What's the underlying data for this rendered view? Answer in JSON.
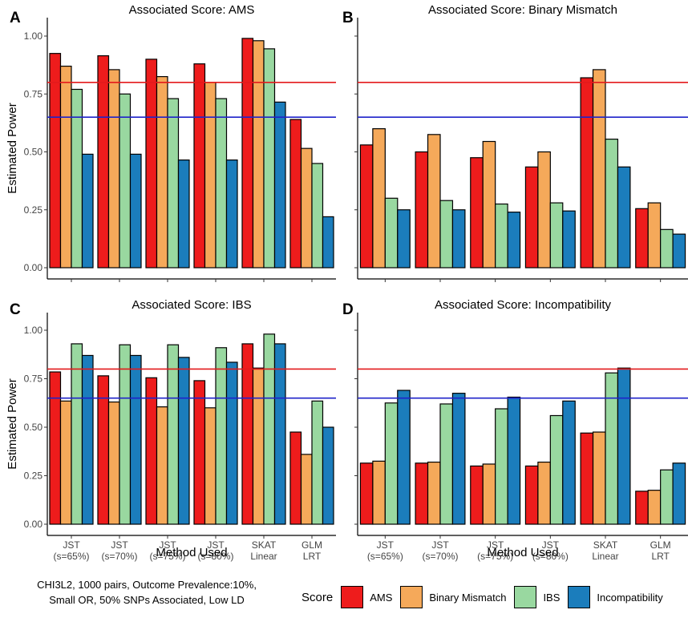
{
  "figure": {
    "caption_line1": "CHI3L2, 1000 pairs, Outcome Prevalence:10%,",
    "caption_line2": "Small OR, 50% SNPs Associated, Low LD",
    "legend_title": "Score",
    "ylabel": "Estimated Power",
    "xlabel": "Method Used"
  },
  "series_names": [
    "AMS",
    "Binary Mismatch",
    "IBS",
    "Incompatibility"
  ],
  "colors": {
    "AMS": "#ee1c1c",
    "Binary Mismatch": "#f5a95a",
    "IBS": "#99d8a0",
    "Incompatibility": "#1b7dbc",
    "line_red": "#e31a1c",
    "line_blue": "#1f23c9"
  },
  "chart_data": [
    {
      "panel": "A",
      "type": "bar",
      "title": "Associated Score: AMS",
      "categories": [
        [
          "JST",
          "(s=65%)"
        ],
        [
          "JST",
          "(s=70%)"
        ],
        [
          "JST",
          "(s=75%)"
        ],
        [
          "JST",
          "(s=80%)"
        ],
        [
          "SKAT",
          "Linear"
        ],
        [
          "GLM",
          "LRT"
        ]
      ],
      "series": [
        {
          "name": "AMS",
          "values": [
            0.925,
            0.915,
            0.9,
            0.88,
            0.99,
            0.64
          ]
        },
        {
          "name": "Binary Mismatch",
          "values": [
            0.87,
            0.855,
            0.825,
            0.8,
            0.98,
            0.515
          ]
        },
        {
          "name": "IBS",
          "values": [
            0.77,
            0.75,
            0.73,
            0.73,
            0.945,
            0.45
          ]
        },
        {
          "name": "Incompatibility",
          "values": [
            0.49,
            0.49,
            0.465,
            0.465,
            0.715,
            0.22
          ]
        }
      ],
      "hlines": [
        {
          "value": 0.8,
          "color": "red"
        },
        {
          "value": 0.65,
          "color": "blue"
        }
      ],
      "ylim": [
        0,
        1.0
      ],
      "yticks": [
        "0.00",
        "0.25",
        "0.50",
        "0.75",
        "1.00"
      ],
      "show_yaxis_labels": true,
      "show_xaxis_labels": false
    },
    {
      "panel": "B",
      "type": "bar",
      "title": "Associated Score: Binary Mismatch",
      "categories": [
        [
          "JST",
          "(s=65%)"
        ],
        [
          "JST",
          "(s=70%)"
        ],
        [
          "JST",
          "(s=75%)"
        ],
        [
          "JST",
          "(s=80%)"
        ],
        [
          "SKAT",
          "Linear"
        ],
        [
          "GLM",
          "LRT"
        ]
      ],
      "series": [
        {
          "name": "AMS",
          "values": [
            0.53,
            0.5,
            0.475,
            0.435,
            0.82,
            0.255
          ]
        },
        {
          "name": "Binary Mismatch",
          "values": [
            0.6,
            0.575,
            0.545,
            0.5,
            0.855,
            0.28
          ]
        },
        {
          "name": "IBS",
          "values": [
            0.3,
            0.29,
            0.275,
            0.28,
            0.555,
            0.165
          ]
        },
        {
          "name": "Incompatibility",
          "values": [
            0.25,
            0.25,
            0.24,
            0.245,
            0.435,
            0.145
          ]
        }
      ],
      "hlines": [
        {
          "value": 0.8,
          "color": "red"
        },
        {
          "value": 0.65,
          "color": "blue"
        }
      ],
      "ylim": [
        0,
        1.0
      ],
      "yticks": [
        "0.00",
        "0.25",
        "0.50",
        "0.75",
        "1.00"
      ],
      "show_yaxis_labels": false,
      "show_xaxis_labels": false
    },
    {
      "panel": "C",
      "type": "bar",
      "title": "Associated Score: IBS",
      "categories": [
        [
          "JST",
          "(s=65%)"
        ],
        [
          "JST",
          "(s=70%)"
        ],
        [
          "JST",
          "(s=75%)"
        ],
        [
          "JST",
          "(s=80%)"
        ],
        [
          "SKAT",
          "Linear"
        ],
        [
          "GLM",
          "LRT"
        ]
      ],
      "series": [
        {
          "name": "AMS",
          "values": [
            0.785,
            0.765,
            0.755,
            0.74,
            0.93,
            0.475
          ]
        },
        {
          "name": "Binary Mismatch",
          "values": [
            0.635,
            0.63,
            0.605,
            0.6,
            0.805,
            0.36
          ]
        },
        {
          "name": "IBS",
          "values": [
            0.93,
            0.925,
            0.925,
            0.91,
            0.98,
            0.635
          ]
        },
        {
          "name": "Incompatibility",
          "values": [
            0.87,
            0.87,
            0.86,
            0.835,
            0.93,
            0.5
          ]
        }
      ],
      "hlines": [
        {
          "value": 0.8,
          "color": "red"
        },
        {
          "value": 0.65,
          "color": "blue"
        }
      ],
      "ylim": [
        0,
        1.0
      ],
      "yticks": [
        "0.00",
        "0.25",
        "0.50",
        "0.75",
        "1.00"
      ],
      "show_yaxis_labels": true,
      "show_xaxis_labels": true
    },
    {
      "panel": "D",
      "type": "bar",
      "title": "Associated Score: Incompatibility",
      "categories": [
        [
          "JST",
          "(s=65%)"
        ],
        [
          "JST",
          "(s=70%)"
        ],
        [
          "JST",
          "(s=75%)"
        ],
        [
          "JST",
          "(s=80%)"
        ],
        [
          "SKAT",
          "Linear"
        ],
        [
          "GLM",
          "LRT"
        ]
      ],
      "series": [
        {
          "name": "AMS",
          "values": [
            0.315,
            0.315,
            0.3,
            0.3,
            0.47,
            0.17
          ]
        },
        {
          "name": "Binary Mismatch",
          "values": [
            0.325,
            0.32,
            0.31,
            0.32,
            0.475,
            0.175
          ]
        },
        {
          "name": "IBS",
          "values": [
            0.625,
            0.62,
            0.595,
            0.56,
            0.78,
            0.28
          ]
        },
        {
          "name": "Incompatibility",
          "values": [
            0.69,
            0.675,
            0.655,
            0.635,
            0.805,
            0.315
          ]
        }
      ],
      "hlines": [
        {
          "value": 0.8,
          "color": "red"
        },
        {
          "value": 0.65,
          "color": "blue"
        }
      ],
      "ylim": [
        0,
        1.0
      ],
      "yticks": [
        "0.00",
        "0.25",
        "0.50",
        "0.75",
        "1.00"
      ],
      "show_yaxis_labels": false,
      "show_xaxis_labels": true
    }
  ]
}
